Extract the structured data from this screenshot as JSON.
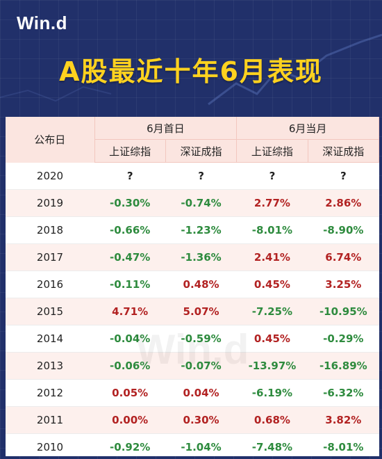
{
  "header": {
    "logo": "Win.d",
    "title": "A股最近十年6月表现"
  },
  "watermark": "Win.d",
  "table": {
    "col_year": "公布日",
    "groups": [
      "6月首日",
      "6月当月"
    ],
    "subheaders": [
      "上证综指",
      "深证成指",
      "上证综指",
      "深证成指"
    ],
    "colors": {
      "positive": "#b22222",
      "negative": "#2e8b3e"
    },
    "rows": [
      {
        "year": "2020",
        "cells": [
          "?",
          "?",
          "?",
          "?"
        ]
      },
      {
        "year": "2019",
        "cells": [
          "-0.30%",
          "-0.74%",
          "2.77%",
          "2.86%"
        ]
      },
      {
        "year": "2018",
        "cells": [
          "-0.66%",
          "-1.23%",
          "-8.01%",
          "-8.90%"
        ]
      },
      {
        "year": "2017",
        "cells": [
          "-0.47%",
          "-1.36%",
          "2.41%",
          "6.74%"
        ]
      },
      {
        "year": "2016",
        "cells": [
          "-0.11%",
          "0.48%",
          "0.45%",
          "3.25%"
        ]
      },
      {
        "year": "2015",
        "cells": [
          "4.71%",
          "5.07%",
          "-7.25%",
          "-10.95%"
        ]
      },
      {
        "year": "2014",
        "cells": [
          "-0.04%",
          "-0.59%",
          "0.45%",
          "-0.29%"
        ]
      },
      {
        "year": "2013",
        "cells": [
          "-0.06%",
          "-0.07%",
          "-13.97%",
          "-16.89%"
        ]
      },
      {
        "year": "2012",
        "cells": [
          "0.05%",
          "0.04%",
          "-6.19%",
          "-6.32%"
        ]
      },
      {
        "year": "2011",
        "cells": [
          "0.00%",
          "0.30%",
          "0.68%",
          "3.82%"
        ]
      },
      {
        "year": "2010",
        "cells": [
          "-0.92%",
          "-1.04%",
          "-7.48%",
          "-8.01%"
        ]
      }
    ]
  }
}
